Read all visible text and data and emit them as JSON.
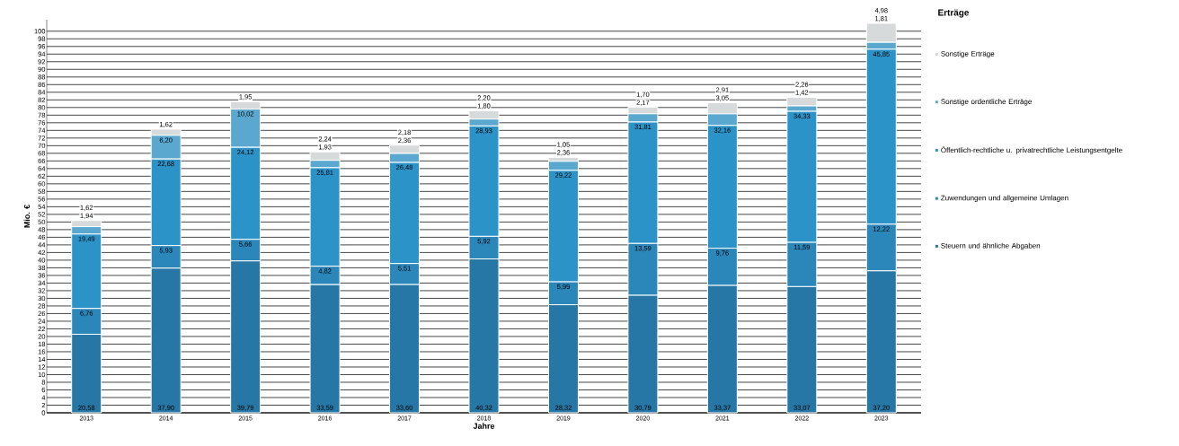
{
  "chart_data": {
    "type": "bar",
    "stacked": true,
    "xlabel": "Jahre",
    "ylabel": "Mio. €",
    "legend_title": "Erträge",
    "legend": "right",
    "grid": "y",
    "categories": [
      "2013",
      "2014",
      "2015",
      "2016",
      "2017",
      "2018",
      "2019",
      "2020",
      "2021",
      "2022",
      "2023"
    ],
    "ylim": [
      0,
      103
    ],
    "yticks": [
      0,
      2,
      4,
      6,
      8,
      10,
      12,
      14,
      16,
      18,
      20,
      22,
      24,
      26,
      28,
      30,
      32,
      34,
      36,
      38,
      40,
      42,
      44,
      46,
      48,
      50,
      52,
      54,
      56,
      58,
      60,
      62,
      64,
      66,
      68,
      70,
      72,
      74,
      76,
      78,
      80,
      82,
      84,
      86,
      88,
      90,
      92,
      94,
      96,
      98,
      100
    ],
    "series": [
      {
        "name": "Steuern und ähnliche Abgaben",
        "color": "#2677a5",
        "values": [
          20.58,
          37.9,
          39.79,
          33.59,
          33.6,
          40.32,
          28.32,
          30.79,
          33.37,
          33.07,
          37.2
        ],
        "value_labels": [
          "20,58",
          "37,90",
          "39,79",
          "33,59",
          "33,60",
          "40,32",
          "28,32",
          "30,79",
          "33,37",
          "33,07",
          "37,20"
        ]
      },
      {
        "name": "Zuwendungen und allgemeine Umlagen",
        "color": "#2b87ba",
        "values": [
          6.76,
          5.93,
          5.66,
          4.82,
          5.51,
          5.92,
          5.99,
          13.59,
          9.76,
          11.59,
          12.22
        ],
        "value_labels": [
          "6,76",
          "5,93",
          "5,66",
          "4,82",
          "5,51",
          "5,92",
          "5,99",
          "13,59",
          "9,76",
          "11,59",
          "12,22"
        ]
      },
      {
        "name": "Öffentlich-rechtliche u. privatrechtliche Leistungsentgelte",
        "color": "#2c93c8",
        "values": [
          19.49,
          22.68,
          24.12,
          25.81,
          26.48,
          28.93,
          29.22,
          31.81,
          32.16,
          34.33,
          45.85
        ],
        "value_labels": [
          "19,49",
          "22,68",
          "24,12",
          "25,81",
          "26,48",
          "28,93",
          "29,22",
          "31,81",
          "32,16",
          "34,33",
          "45,85"
        ]
      },
      {
        "name": "Sonstige ordentliche Erträge",
        "color": "#5aa7d0",
        "values": [
          1.94,
          6.2,
          10.02,
          1.93,
          2.36,
          1.8,
          2.36,
          2.17,
          3.05,
          1.42,
          1.81
        ],
        "value_labels": [
          "1,94",
          "6,20",
          "10,02",
          "1,93",
          "2,36",
          "1,80",
          "2,36",
          "2,17",
          "3,05",
          "1,42",
          "1,81"
        ]
      },
      {
        "name": "Sonstige Erträge",
        "color": "#d6dada",
        "values": [
          1.62,
          1.62,
          1.95,
          2.24,
          2.18,
          2.2,
          1.05,
          1.7,
          2.91,
          2.26,
          4.98
        ],
        "value_labels": [
          "1,62",
          "1,62",
          "1,95",
          "2,24",
          "2,18",
          "2,20",
          "1,05",
          "1,70",
          "2,91",
          "2,26",
          "4,98"
        ]
      }
    ]
  }
}
